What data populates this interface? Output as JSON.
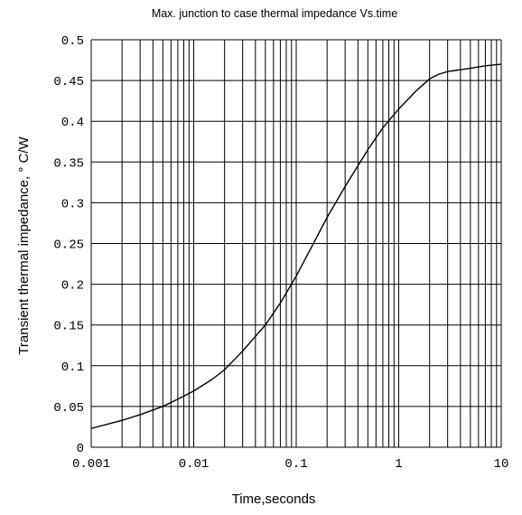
{
  "chart_data": {
    "type": "line",
    "title": "Max. junction to case thermal impedance Vs.time",
    "xlabel": "Time,seconds",
    "ylabel": "Transient  thermal impedance, ° C/W",
    "x_scale": "log",
    "xlim": [
      0.001,
      10
    ],
    "ylim": [
      0,
      0.5
    ],
    "x_ticks": [
      "0.001",
      "0.01",
      "0.1",
      "1",
      "10"
    ],
    "y_ticks": [
      "0",
      "0.05",
      "0.1",
      "0.15",
      "0.2",
      "0.25",
      "0.3",
      "0.35",
      "0.4",
      "0.45",
      "0.5"
    ],
    "grid": true,
    "legend": false,
    "series": [
      {
        "x": [
          0.001,
          0.002,
          0.003,
          0.005,
          0.007,
          0.01,
          0.015,
          0.02,
          0.03,
          0.05,
          0.07,
          0.1,
          0.15,
          0.2,
          0.3,
          0.5,
          0.7,
          1,
          1.5,
          2,
          2.5,
          3,
          5,
          7,
          10
        ],
        "y": [
          0.023,
          0.033,
          0.04,
          0.05,
          0.059,
          0.069,
          0.083,
          0.095,
          0.118,
          0.15,
          0.177,
          0.21,
          0.252,
          0.282,
          0.32,
          0.365,
          0.392,
          0.415,
          0.438,
          0.452,
          0.458,
          0.461,
          0.465,
          0.468,
          0.47
        ],
        "color": "#000000"
      }
    ]
  }
}
